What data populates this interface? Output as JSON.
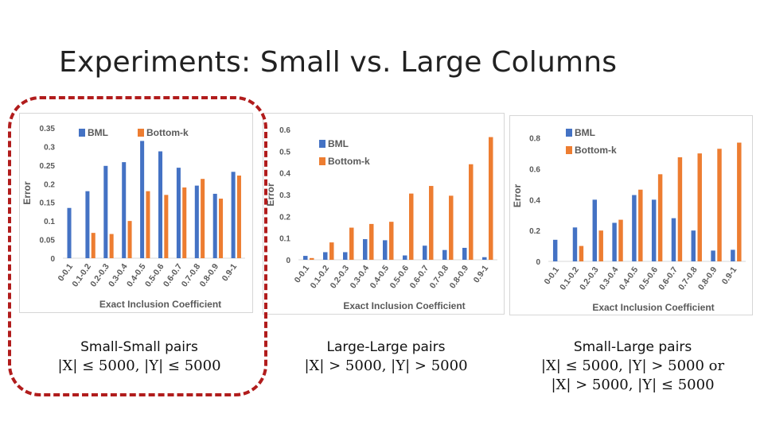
{
  "slide": {
    "title": "Experiments: Small vs. Large Columns"
  },
  "colors": {
    "bml": "#4472c4",
    "bottomk": "#ed7d31",
    "highlight": "#b11c1c"
  },
  "captions": [
    {
      "line1": "Small-Small pairs",
      "line2": "|X| ≤ 5000, |Y| ≤ 5000",
      "line3": ""
    },
    {
      "line1": "Large-Large pairs",
      "line2": "|X| > 5000, |Y| > 5000",
      "line3": ""
    },
    {
      "line1": "Small-Large pairs",
      "line2": "|X| ≤ 5000, |Y| > 5000 or",
      "line3": "|X| > 5000, |Y| ≤ 5000"
    }
  ],
  "chart_data": [
    {
      "type": "bar",
      "categories": [
        "0-0.1",
        "0.1-0.2",
        "0.2-0.3",
        "0.3-0.4",
        "0.4-0.5",
        "0.5-0.6",
        "0.6-0.7",
        "0.7-0.8",
        "0.8-0.9",
        "0.9-1"
      ],
      "series": [
        {
          "name": "BML",
          "values": [
            0.135,
            0.18,
            0.248,
            0.258,
            0.315,
            0.287,
            0.243,
            0.195,
            0.173,
            0.232
          ]
        },
        {
          "name": "Bottom-k",
          "values": [
            0.0,
            0.068,
            0.065,
            0.1,
            0.18,
            0.17,
            0.19,
            0.213,
            0.16,
            0.222
          ]
        }
      ],
      "yticks": [
        "0",
        "0.05",
        "0.1",
        "0.15",
        "0.2",
        "0.25",
        "0.3",
        "0.35"
      ],
      "ylim": [
        0,
        0.35
      ],
      "xlabel": "Exact Inclusion Coefficient",
      "ylabel": "Error",
      "legend": "top-left",
      "grid": false
    },
    {
      "type": "bar",
      "categories": [
        "0-0.1",
        "0.1-0.2",
        "0.2-0.3",
        "0.3-0.4",
        "0.4-0.5",
        "0.5-0.6",
        "0.6-0.7",
        "0.7-0.8",
        "0.8-0.9",
        "0.9-1"
      ],
      "series": [
        {
          "name": "BML",
          "values": [
            0.018,
            0.035,
            0.035,
            0.095,
            0.09,
            0.02,
            0.065,
            0.045,
            0.055,
            0.012
          ]
        },
        {
          "name": "Bottom-k",
          "values": [
            0.008,
            0.08,
            0.148,
            0.165,
            0.175,
            0.305,
            0.34,
            0.295,
            0.44,
            0.565
          ]
        }
      ],
      "yticks": [
        "0",
        "0.1",
        "0.2",
        "0.3",
        "0.4",
        "0.5",
        "0.6"
      ],
      "ylim": [
        0,
        0.6
      ],
      "xlabel": "Exact Inclusion Coefficient",
      "ylabel": "Error",
      "legend": "top-left",
      "grid": false
    },
    {
      "type": "bar",
      "categories": [
        "0-0.1",
        "0.1-0.2",
        "0.2-0.3",
        "0.3-0.4",
        "0.4-0.5",
        "0.5-0.6",
        "0.6-0.7",
        "0.7-0.8",
        "0.8-0.9",
        "0.9-1"
      ],
      "series": [
        {
          "name": "BML",
          "values": [
            0.14,
            0.22,
            0.4,
            0.25,
            0.43,
            0.4,
            0.28,
            0.2,
            0.07,
            0.075
          ]
        },
        {
          "name": "Bottom-k",
          "values": [
            0.0,
            0.1,
            0.2,
            0.27,
            0.465,
            0.565,
            0.675,
            0.7,
            0.73,
            0.77
          ]
        }
      ],
      "yticks": [
        "0",
        "0.2",
        "0.4",
        "0.6",
        "0.8"
      ],
      "ylim": [
        0,
        0.85
      ],
      "xlabel": "Exact Inclusion Coefficient",
      "ylabel": "Error",
      "legend": "top-left",
      "grid": false
    }
  ]
}
